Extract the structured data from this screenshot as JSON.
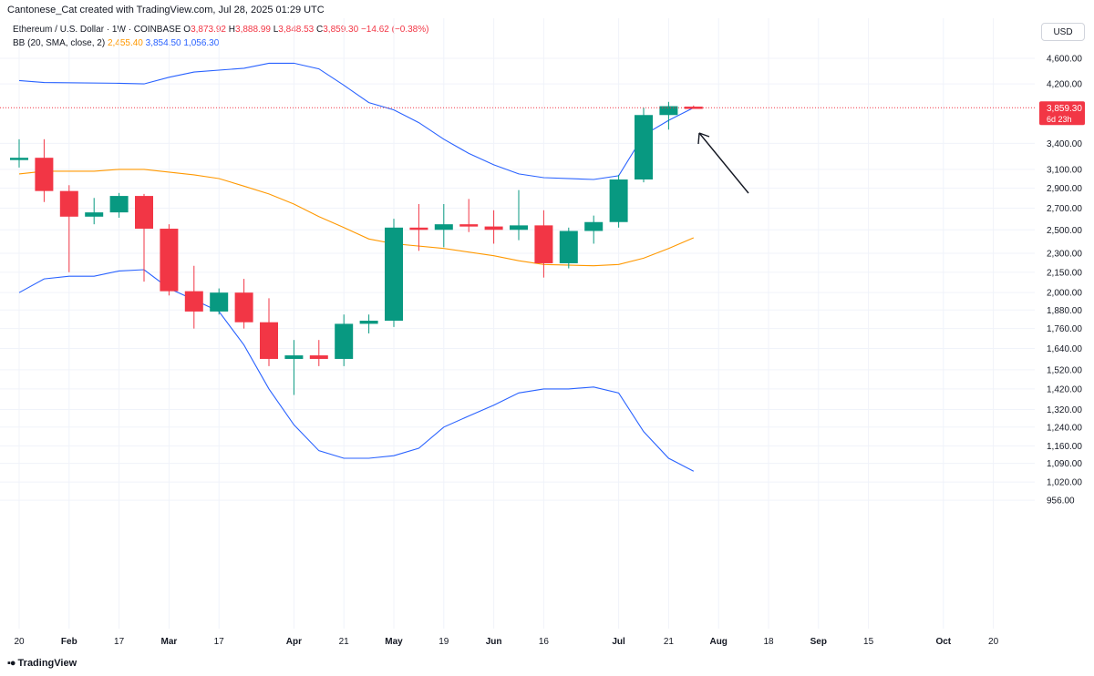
{
  "header": {
    "attribution": "Cantonese_Cat created with TradingView.com, Jul 28, 2025 01:29 UTC"
  },
  "symbol": {
    "name": "Ethereum / U.S. Dollar · 1W · COINBASE",
    "o_label": "O",
    "o": "3,873.92",
    "h_label": "H",
    "h": "3,888.99",
    "l_label": "L",
    "l": "3,848.53",
    "c_label": "C",
    "c": "3,859.30",
    "change": "−14.62 (−0.38%)"
  },
  "indicator": {
    "name": "BB (20, SMA, close, 2)",
    "basis": "2,455.40",
    "upper": "3,854.50",
    "lower": "1,056.30"
  },
  "currency": "USD",
  "price_badge": {
    "price": "3,859.30",
    "countdown": "6d 23h"
  },
  "footer": {
    "brand": "TradingView",
    "icon": "tradingview-logo-icon"
  },
  "colors": {
    "up": "#089981",
    "down": "#f23645",
    "basis": "#ff9800",
    "bands": "#2962ff",
    "grid": "#f0f3fa",
    "axis_text": "#131722",
    "badge": "#f23645"
  },
  "chart_data": {
    "type": "candlestick",
    "interval": "1W",
    "y_scale": "log",
    "y_ticks": [
      956,
      1020,
      1090,
      1160,
      1240,
      1320,
      1420,
      1520,
      1640,
      1760,
      1880,
      2000,
      2150,
      2300,
      2500,
      2700,
      2900,
      3100,
      3400,
      4200,
      4600
    ],
    "y_tick_labels": [
      "956.00",
      "1,020.00",
      "1,090.00",
      "1,160.00",
      "1,240.00",
      "1,320.00",
      "1,420.00",
      "1,520.00",
      "1,640.00",
      "1,760.00",
      "1,880.00",
      "2,000.00",
      "2,150.00",
      "2,300.00",
      "2,500.00",
      "2,700.00",
      "2,900.00",
      "3,100.00",
      "3,400.00",
      "4,200.00",
      "4,600.00"
    ],
    "x_ticks": [
      {
        "label": "20",
        "week": 0
      },
      {
        "label": "Feb",
        "week": 2
      },
      {
        "label": "17",
        "week": 4
      },
      {
        "label": "Mar",
        "week": 6
      },
      {
        "label": "17",
        "week": 8
      },
      {
        "label": "Apr",
        "week": 11
      },
      {
        "label": "21",
        "week": 13
      },
      {
        "label": "May",
        "week": 15
      },
      {
        "label": "19",
        "week": 17
      },
      {
        "label": "Jun",
        "week": 19
      },
      {
        "label": "16",
        "week": 21
      },
      {
        "label": "Jul",
        "week": 24
      },
      {
        "label": "21",
        "week": 26
      },
      {
        "label": "Aug",
        "week": 28
      },
      {
        "label": "18",
        "week": 30
      },
      {
        "label": "Sep",
        "week": 32
      },
      {
        "label": "15",
        "week": 34
      },
      {
        "label": "Oct",
        "week": 37
      },
      {
        "label": "20",
        "week": 39
      }
    ],
    "candles": [
      {
        "week": 0,
        "o": 3215,
        "h": 3450,
        "l": 3120,
        "c": 3230
      },
      {
        "week": 1,
        "o": 3230,
        "h": 3450,
        "l": 2760,
        "c": 2870
      },
      {
        "week": 2,
        "o": 2870,
        "h": 2930,
        "l": 2150,
        "c": 2620
      },
      {
        "week": 3,
        "o": 2620,
        "h": 2800,
        "l": 2550,
        "c": 2660
      },
      {
        "week": 4,
        "o": 2660,
        "h": 2850,
        "l": 2610,
        "c": 2820
      },
      {
        "week": 5,
        "o": 2820,
        "h": 2840,
        "l": 2080,
        "c": 2510
      },
      {
        "week": 6,
        "o": 2510,
        "h": 2550,
        "l": 1980,
        "c": 2010
      },
      {
        "week": 7,
        "o": 2010,
        "h": 2200,
        "l": 1760,
        "c": 1870
      },
      {
        "week": 8,
        "o": 1870,
        "h": 2030,
        "l": 1850,
        "c": 2000
      },
      {
        "week": 9,
        "o": 2000,
        "h": 2100,
        "l": 1760,
        "c": 1800
      },
      {
        "week": 10,
        "o": 1800,
        "h": 1960,
        "l": 1540,
        "c": 1580
      },
      {
        "week": 11,
        "o": 1580,
        "h": 1690,
        "l": 1390,
        "c": 1600
      },
      {
        "week": 12,
        "o": 1600,
        "h": 1690,
        "l": 1540,
        "c": 1580
      },
      {
        "week": 13,
        "o": 1580,
        "h": 1850,
        "l": 1540,
        "c": 1790
      },
      {
        "week": 14,
        "o": 1790,
        "h": 1850,
        "l": 1730,
        "c": 1810
      },
      {
        "week": 15,
        "o": 1810,
        "h": 2600,
        "l": 1770,
        "c": 2520
      },
      {
        "week": 16,
        "o": 2520,
        "h": 2740,
        "l": 2320,
        "c": 2500
      },
      {
        "week": 17,
        "o": 2500,
        "h": 2740,
        "l": 2350,
        "c": 2550
      },
      {
        "week": 18,
        "o": 2550,
        "h": 2790,
        "l": 2480,
        "c": 2530
      },
      {
        "week": 19,
        "o": 2530,
        "h": 2680,
        "l": 2380,
        "c": 2500
      },
      {
        "week": 20,
        "o": 2500,
        "h": 2880,
        "l": 2410,
        "c": 2540
      },
      {
        "week": 21,
        "o": 2540,
        "h": 2680,
        "l": 2110,
        "c": 2220
      },
      {
        "week": 22,
        "o": 2220,
        "h": 2520,
        "l": 2180,
        "c": 2490
      },
      {
        "week": 23,
        "o": 2490,
        "h": 2630,
        "l": 2380,
        "c": 2570
      },
      {
        "week": 24,
        "o": 2570,
        "h": 3040,
        "l": 2520,
        "c": 2990
      },
      {
        "week": 25,
        "o": 2990,
        "h": 3860,
        "l": 2960,
        "c": 3760
      },
      {
        "week": 26,
        "o": 3760,
        "h": 3940,
        "l": 3570,
        "c": 3880
      },
      {
        "week": 27,
        "o": 3873.92,
        "h": 3888.99,
        "l": 3848.53,
        "c": 3859.3
      }
    ],
    "bollinger": {
      "period": 20,
      "stddev": 2,
      "basis": [
        [
          0,
          3050
        ],
        [
          1,
          3080
        ],
        [
          3,
          3080
        ],
        [
          4,
          3100
        ],
        [
          5,
          3100
        ],
        [
          7,
          3040
        ],
        [
          8,
          3000
        ],
        [
          9,
          2920
        ],
        [
          10,
          2840
        ],
        [
          11,
          2740
        ],
        [
          12,
          2620
        ],
        [
          13,
          2520
        ],
        [
          14,
          2420
        ],
        [
          15,
          2380
        ],
        [
          17,
          2340
        ],
        [
          19,
          2280
        ],
        [
          20,
          2240
        ],
        [
          21,
          2210
        ],
        [
          23,
          2200
        ],
        [
          24,
          2210
        ],
        [
          25,
          2260
        ],
        [
          26,
          2340
        ],
        [
          27,
          2430
        ]
      ],
      "upper": [
        [
          0,
          4250
        ],
        [
          1,
          4220
        ],
        [
          4,
          4210
        ],
        [
          5,
          4200
        ],
        [
          6,
          4300
        ],
        [
          7,
          4380
        ],
        [
          9,
          4440
        ],
        [
          10,
          4520
        ],
        [
          11,
          4520
        ],
        [
          12,
          4430
        ],
        [
          13,
          4180
        ],
        [
          14,
          3930
        ],
        [
          15,
          3830
        ],
        [
          16,
          3660
        ],
        [
          17,
          3450
        ],
        [
          18,
          3280
        ],
        [
          19,
          3150
        ],
        [
          20,
          3050
        ],
        [
          21,
          3010
        ],
        [
          23,
          2990
        ],
        [
          24,
          3030
        ],
        [
          25,
          3500
        ],
        [
          26,
          3690
        ],
        [
          27,
          3860
        ]
      ],
      "lower": [
        [
          0,
          2000
        ],
        [
          1,
          2100
        ],
        [
          2,
          2120
        ],
        [
          3,
          2120
        ],
        [
          4,
          2160
        ],
        [
          5,
          2170
        ],
        [
          6,
          2030
        ],
        [
          7,
          1950
        ],
        [
          8,
          1870
        ],
        [
          9,
          1660
        ],
        [
          10,
          1420
        ],
        [
          11,
          1250
        ],
        [
          12,
          1140
        ],
        [
          13,
          1110
        ],
        [
          14,
          1110
        ],
        [
          15,
          1120
        ],
        [
          16,
          1150
        ],
        [
          17,
          1240
        ],
        [
          18,
          1290
        ],
        [
          19,
          1340
        ],
        [
          20,
          1400
        ],
        [
          21,
          1420
        ],
        [
          22,
          1420
        ],
        [
          23,
          1430
        ],
        [
          24,
          1400
        ],
        [
          25,
          1220
        ],
        [
          26,
          1110
        ],
        [
          27,
          1060
        ]
      ]
    },
    "last_price": 3859.3,
    "annotation": "arrow"
  }
}
